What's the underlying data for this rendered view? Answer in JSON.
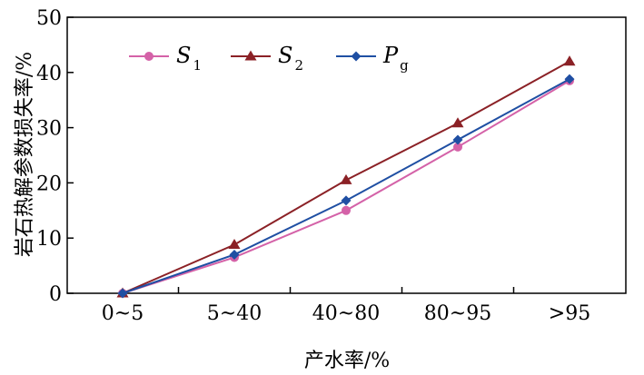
{
  "chart_data": {
    "type": "line",
    "xlabel": "产水率/%",
    "ylabel": "岩石热解参数损失率/%",
    "categories": [
      "0~5",
      "5~40",
      "40~80",
      "80~95",
      ">95"
    ],
    "ylim": [
      0,
      50
    ],
    "yticks": [
      0,
      10,
      20,
      30,
      40,
      50
    ],
    "grid": false,
    "legend_position": "top-left",
    "series": [
      {
        "name": "S1",
        "name_main": "S",
        "name_sub": "1",
        "color": "#d462a8",
        "marker": "circle",
        "values": [
          0,
          6.5,
          15,
          26.5,
          38.5
        ]
      },
      {
        "name": "S2",
        "name_main": "S",
        "name_sub": "2",
        "color": "#8b2126",
        "marker": "triangle",
        "values": [
          0,
          8.8,
          20.5,
          30.8,
          42
        ]
      },
      {
        "name": "Pg",
        "name_main": "P",
        "name_sub": "g",
        "color": "#1f4fa3",
        "marker": "diamond",
        "values": [
          0,
          7,
          16.8,
          27.8,
          38.8
        ]
      }
    ]
  }
}
